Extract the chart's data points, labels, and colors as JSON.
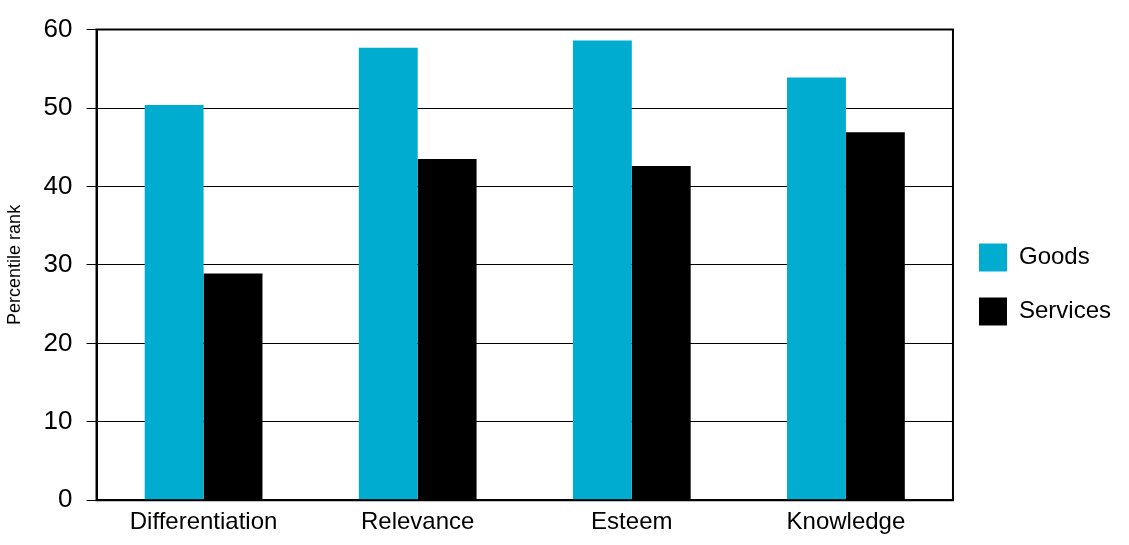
{
  "chart_data": {
    "type": "bar",
    "ylabel": "Percentile rank",
    "categories": [
      "Differentiation",
      "Relevance",
      "Esteem",
      "Knowledge"
    ],
    "series": [
      {
        "name": "Goods",
        "color": "#00acd0",
        "values": [
          50.4,
          57.7,
          58.6,
          53.9
        ]
      },
      {
        "name": "Services",
        "color": "#000000",
        "values": [
          28.9,
          43.5,
          42.6,
          46.9
        ]
      }
    ],
    "ylim": [
      0,
      60
    ],
    "yticks": [
      0,
      10,
      20,
      30,
      40,
      50,
      60
    ],
    "grid": "y",
    "legend": "right"
  }
}
